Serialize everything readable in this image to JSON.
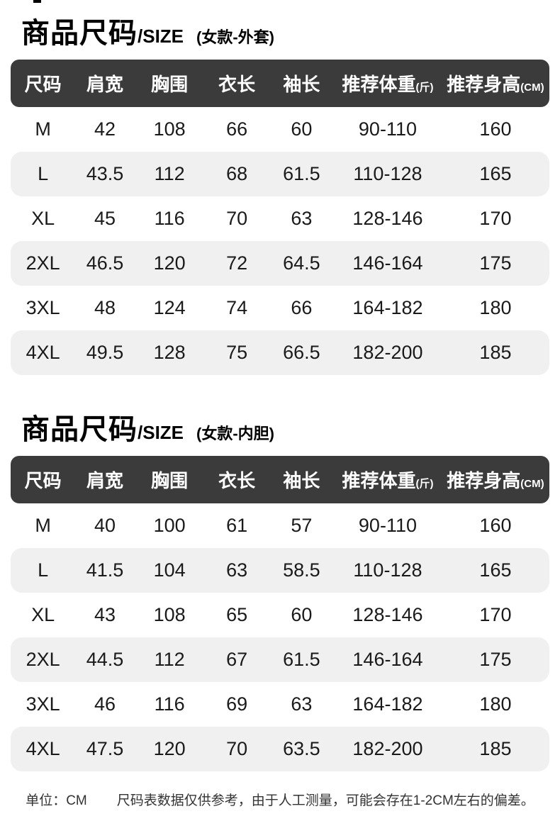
{
  "theme": {
    "header_bg": "#3b3b3b",
    "header_text": "#ffffff",
    "row_alt_bg": "#f0f0f0",
    "body_text": "#1a1a1a"
  },
  "sections": [
    {
      "title": "商品尺码",
      "title_suffix": "/SIZE",
      "variant": "(女款-外套)",
      "columns": [
        "尺码",
        "肩宽",
        "胸围",
        "衣长",
        "袖长",
        "推荐体重",
        "推荐身高"
      ],
      "column_units": [
        "",
        "",
        "",
        "",
        "",
        "(斤)",
        "(CM)"
      ],
      "rows": [
        [
          "M",
          "42",
          "108",
          "66",
          "60",
          "90-110",
          "160"
        ],
        [
          "L",
          "43.5",
          "112",
          "68",
          "61.5",
          "110-128",
          "165"
        ],
        [
          "XL",
          "45",
          "116",
          "70",
          "63",
          "128-146",
          "170"
        ],
        [
          "2XL",
          "46.5",
          "120",
          "72",
          "64.5",
          "146-164",
          "175"
        ],
        [
          "3XL",
          "48",
          "124",
          "74",
          "66",
          "164-182",
          "180"
        ],
        [
          "4XL",
          "49.5",
          "128",
          "75",
          "66.5",
          "182-200",
          "185"
        ]
      ]
    },
    {
      "title": "商品尺码",
      "title_suffix": "/SIZE",
      "variant": "(女款-内胆)",
      "columns": [
        "尺码",
        "肩宽",
        "胸围",
        "衣长",
        "袖长",
        "推荐体重",
        "推荐身高"
      ],
      "column_units": [
        "",
        "",
        "",
        "",
        "",
        "(斤)",
        "(CM)"
      ],
      "rows": [
        [
          "M",
          "40",
          "100",
          "61",
          "57",
          "90-110",
          "160"
        ],
        [
          "L",
          "41.5",
          "104",
          "63",
          "58.5",
          "110-128",
          "165"
        ],
        [
          "XL",
          "43",
          "108",
          "65",
          "60",
          "128-146",
          "170"
        ],
        [
          "2XL",
          "44.5",
          "112",
          "67",
          "61.5",
          "146-164",
          "175"
        ],
        [
          "3XL",
          "46",
          "116",
          "69",
          "63",
          "164-182",
          "180"
        ],
        [
          "4XL",
          "47.5",
          "120",
          "70",
          "63.5",
          "182-200",
          "185"
        ]
      ]
    }
  ],
  "footer": {
    "unit_label": "单位：CM",
    "note": "尺码表数据仅供参考，由于人工测量，可能会存在1-2CM左右的偏差。"
  }
}
